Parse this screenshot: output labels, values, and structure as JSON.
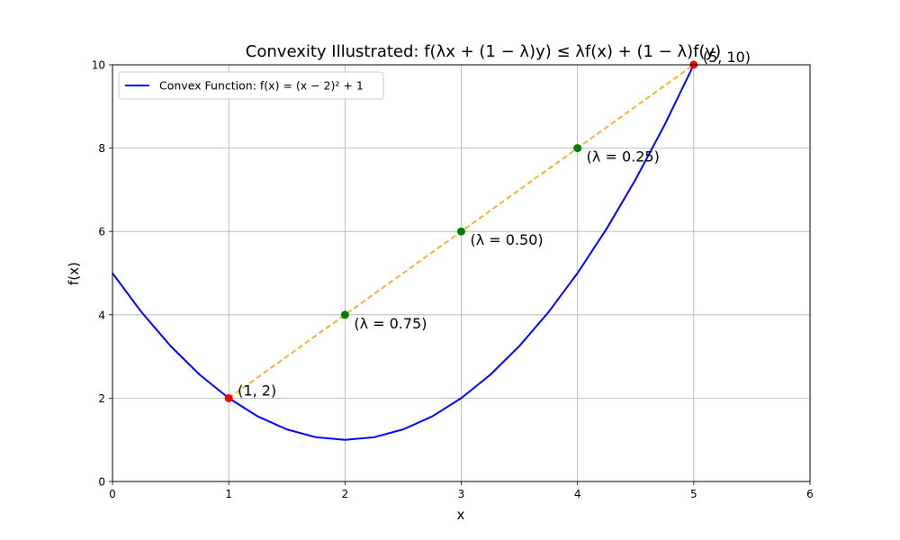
{
  "chart_data": {
    "type": "line",
    "title": "Convexity Illustrated: f(λx + (1 − λ)y) ≤ λf(x) + (1 − λ)f(y)",
    "xlabel": "x",
    "ylabel": "f(x)",
    "xlim": [
      0,
      6
    ],
    "ylim": [
      0,
      10
    ],
    "xticks": [
      0,
      1,
      2,
      3,
      4,
      5,
      6
    ],
    "yticks": [
      0,
      2,
      4,
      6,
      8,
      10
    ],
    "grid": true,
    "legend_position": "top-left",
    "curve": {
      "name": "Convex Function: f(x) = (x − 2)² + 1",
      "x": [
        0,
        0.25,
        0.5,
        0.75,
        1,
        1.25,
        1.5,
        1.75,
        2,
        2.25,
        2.5,
        2.75,
        3,
        3.25,
        3.5,
        3.75,
        4,
        4.25,
        4.5,
        4.75,
        5
      ],
      "y": [
        5,
        4.0625,
        3.25,
        2.5625,
        2,
        1.5625,
        1.25,
        1.0625,
        1,
        1.0625,
        1.25,
        1.5625,
        2,
        2.5625,
        3.25,
        4.0625,
        5,
        6.0625,
        7.25,
        8.5625,
        10
      ],
      "color": "#0000ff"
    },
    "chord": {
      "x": [
        1,
        5
      ],
      "y": [
        2,
        10
      ],
      "color": "#f5b133",
      "style": "dashed"
    },
    "endpoints": [
      {
        "x": 1,
        "y": 2,
        "label": "(1, 2)",
        "color": "#ff0000"
      },
      {
        "x": 5,
        "y": 10,
        "label": "(5, 10)",
        "color": "#ff0000"
      }
    ],
    "lambda_points": [
      {
        "x": 2,
        "y": 4,
        "label": "(λ = 0.75)",
        "color": "#008000"
      },
      {
        "x": 3,
        "y": 6,
        "label": "(λ = 0.50)",
        "color": "#008000"
      },
      {
        "x": 4,
        "y": 8,
        "label": "(λ = 0.25)",
        "color": "#008000"
      }
    ]
  }
}
